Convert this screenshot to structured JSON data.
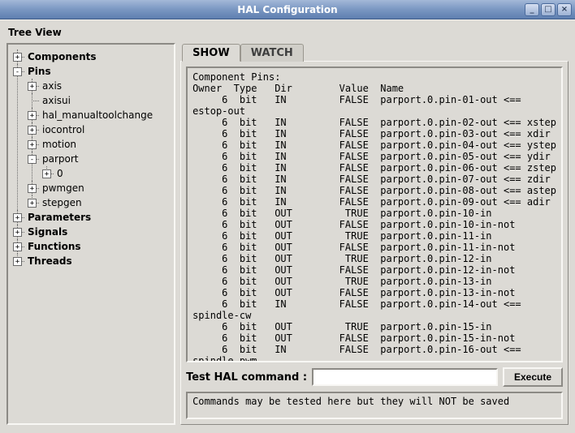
{
  "window": {
    "title": "HAL Configuration",
    "buttons": {
      "min": "_",
      "max": "□",
      "close": "×"
    }
  },
  "treeview": {
    "label": "Tree View",
    "nodes": [
      {
        "label": "Components",
        "bold": true,
        "exp": "+",
        "children": []
      },
      {
        "label": "Pins",
        "bold": true,
        "exp": "-",
        "children": [
          {
            "label": "axis",
            "exp": "+",
            "children": []
          },
          {
            "label": "axisui",
            "noexp": true
          },
          {
            "label": "hal_manualtoolchange",
            "exp": "+",
            "children": []
          },
          {
            "label": "iocontrol",
            "exp": "+",
            "children": []
          },
          {
            "label": "motion",
            "exp": "+",
            "children": []
          },
          {
            "label": "parport",
            "exp": "-",
            "children": [
              {
                "label": "0",
                "exp": "+",
                "children": []
              }
            ]
          },
          {
            "label": "pwmgen",
            "exp": "+",
            "children": []
          },
          {
            "label": "stepgen",
            "exp": "+",
            "children": []
          }
        ]
      },
      {
        "label": "Parameters",
        "bold": true,
        "exp": "+",
        "children": []
      },
      {
        "label": "Signals",
        "bold": true,
        "exp": "+",
        "children": []
      },
      {
        "label": "Functions",
        "bold": true,
        "exp": "+",
        "children": []
      },
      {
        "label": "Threads",
        "bold": true,
        "exp": "+",
        "children": []
      }
    ]
  },
  "tabs": {
    "show": "SHOW",
    "watch": "WATCH",
    "active": "show"
  },
  "pins": {
    "heading": "Component Pins:",
    "columns": [
      "Owner",
      "Type",
      "Dir",
      "Value",
      "Name"
    ],
    "col_pad": [
      6,
      6,
      4,
      11,
      7
    ],
    "rows": [
      {
        "owner": "6",
        "type": "bit",
        "dir": "IN",
        "value": "FALSE",
        "name": "parport.0.pin-01-out <=="
      },
      {
        "wrap": "estop-out"
      },
      {
        "owner": "6",
        "type": "bit",
        "dir": "IN",
        "value": "FALSE",
        "name": "parport.0.pin-02-out <== xstep"
      },
      {
        "owner": "6",
        "type": "bit",
        "dir": "IN",
        "value": "FALSE",
        "name": "parport.0.pin-03-out <== xdir"
      },
      {
        "owner": "6",
        "type": "bit",
        "dir": "IN",
        "value": "FALSE",
        "name": "parport.0.pin-04-out <== ystep"
      },
      {
        "owner": "6",
        "type": "bit",
        "dir": "IN",
        "value": "FALSE",
        "name": "parport.0.pin-05-out <== ydir"
      },
      {
        "owner": "6",
        "type": "bit",
        "dir": "IN",
        "value": "FALSE",
        "name": "parport.0.pin-06-out <== zstep"
      },
      {
        "owner": "6",
        "type": "bit",
        "dir": "IN",
        "value": "FALSE",
        "name": "parport.0.pin-07-out <== zdir"
      },
      {
        "owner": "6",
        "type": "bit",
        "dir": "IN",
        "value": "FALSE",
        "name": "parport.0.pin-08-out <== astep"
      },
      {
        "owner": "6",
        "type": "bit",
        "dir": "IN",
        "value": "FALSE",
        "name": "parport.0.pin-09-out <== adir"
      },
      {
        "owner": "6",
        "type": "bit",
        "dir": "OUT",
        "value": "TRUE",
        "name": "parport.0.pin-10-in"
      },
      {
        "owner": "6",
        "type": "bit",
        "dir": "OUT",
        "value": "FALSE",
        "name": "parport.0.pin-10-in-not"
      },
      {
        "owner": "6",
        "type": "bit",
        "dir": "OUT",
        "value": "TRUE",
        "name": "parport.0.pin-11-in"
      },
      {
        "owner": "6",
        "type": "bit",
        "dir": "OUT",
        "value": "FALSE",
        "name": "parport.0.pin-11-in-not"
      },
      {
        "owner": "6",
        "type": "bit",
        "dir": "OUT",
        "value": "TRUE",
        "name": "parport.0.pin-12-in"
      },
      {
        "owner": "6",
        "type": "bit",
        "dir": "OUT",
        "value": "FALSE",
        "name": "parport.0.pin-12-in-not"
      },
      {
        "owner": "6",
        "type": "bit",
        "dir": "OUT",
        "value": "TRUE",
        "name": "parport.0.pin-13-in"
      },
      {
        "owner": "6",
        "type": "bit",
        "dir": "OUT",
        "value": "FALSE",
        "name": "parport.0.pin-13-in-not"
      },
      {
        "owner": "6",
        "type": "bit",
        "dir": "IN",
        "value": "FALSE",
        "name": "parport.0.pin-14-out <=="
      },
      {
        "wrap": "spindle-cw"
      },
      {
        "owner": "6",
        "type": "bit",
        "dir": "OUT",
        "value": "TRUE",
        "name": "parport.0.pin-15-in"
      },
      {
        "owner": "6",
        "type": "bit",
        "dir": "OUT",
        "value": "FALSE",
        "name": "parport.0.pin-15-in-not"
      },
      {
        "owner": "6",
        "type": "bit",
        "dir": "IN",
        "value": "FALSE",
        "name": "parport.0.pin-16-out <=="
      },
      {
        "wrap": "spindle-pwm"
      }
    ]
  },
  "command": {
    "label": "Test HAL command :",
    "value": "",
    "placeholder": "",
    "execute": "Execute"
  },
  "hint": "Commands may be tested here but they will NOT be saved",
  "colors": {
    "bg": "#dcdad5",
    "titlebar_from": "#a3b8d8",
    "titlebar_to": "#5e7fb0",
    "border_dark": "#8c8a85",
    "border_light": "#f8f7f4",
    "text": "#000000"
  }
}
